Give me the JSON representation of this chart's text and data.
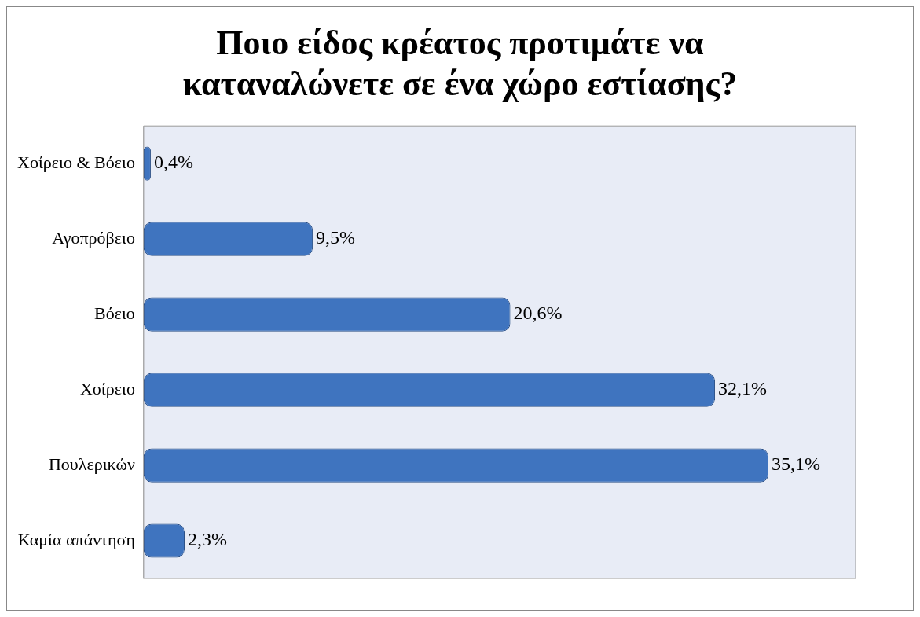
{
  "chart_data": {
    "type": "bar",
    "orientation": "horizontal",
    "title": "Ποιο είδος κρέατος προτιμάτε να καταναλώνετε σε ένα χώρο εστίασης?",
    "categories": [
      "Χοίρειο & Βόειο",
      "Αγοπρόβειο",
      "Βόειο",
      "Χοίρειο",
      "Πουλερικών",
      "Καμία απάντηση"
    ],
    "values": [
      0.4,
      9.5,
      20.6,
      32.1,
      35.1,
      2.3
    ],
    "value_labels": [
      "0,4%",
      "9,5%",
      "20,6%",
      "32,1%",
      "35,1%",
      "2,3%"
    ],
    "color": "#3f74bf",
    "grid": false,
    "legend": false,
    "tick_labels": "y"
  }
}
